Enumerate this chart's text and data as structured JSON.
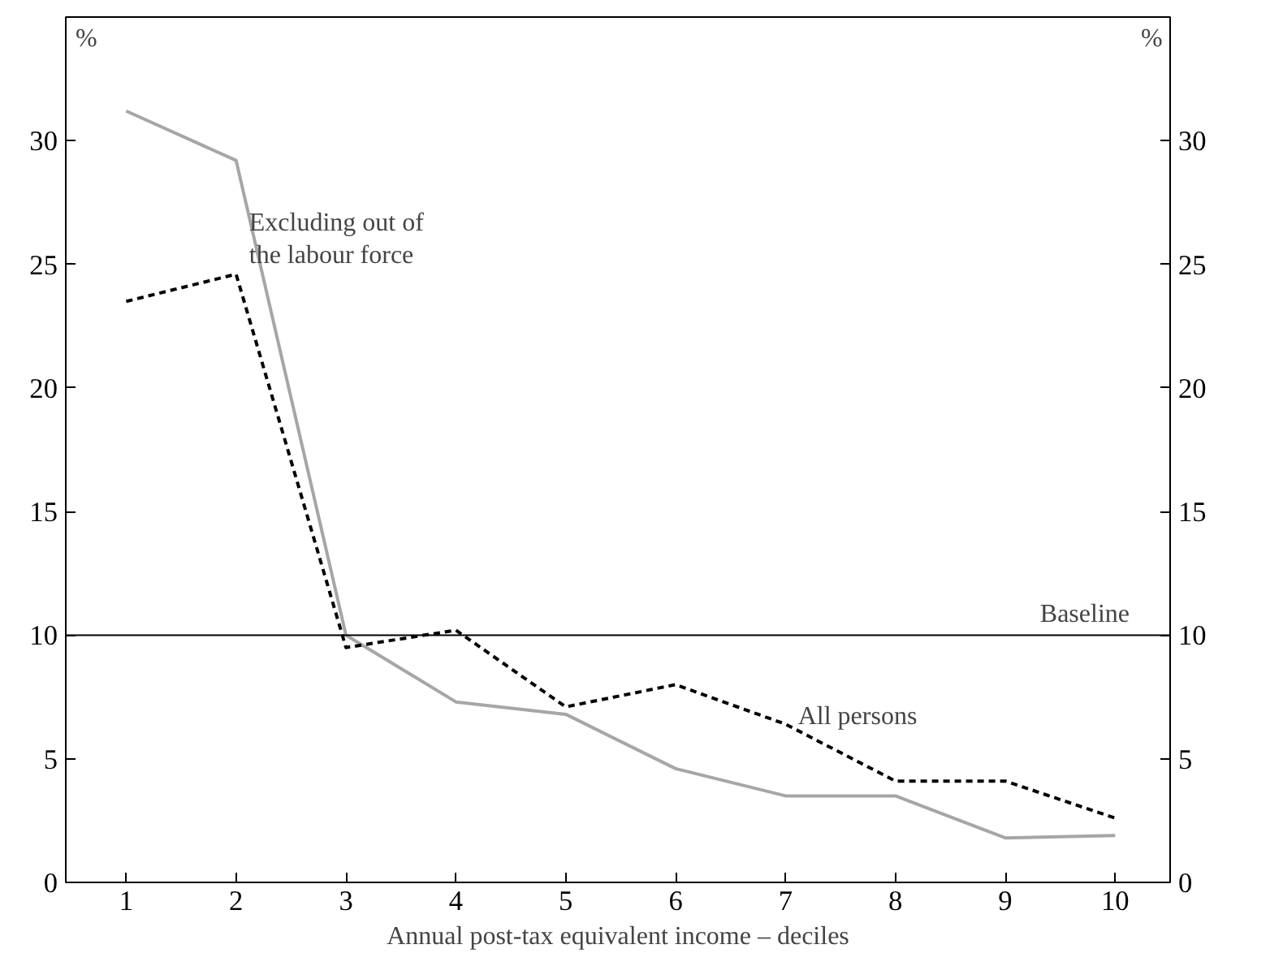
{
  "chart_data": {
    "type": "line",
    "xlabel": "Annual post-tax equivalent income – deciles",
    "ylabel": "%",
    "y2label": "%",
    "x": [
      1,
      2,
      3,
      4,
      5,
      6,
      7,
      8,
      9,
      10
    ],
    "series": [
      {
        "name": "Excluding out of\nthe labour force",
        "color": "#a6a6a6",
        "line_style": "solid",
        "values": [
          31.2,
          29.2,
          10.0,
          7.3,
          6.8,
          4.6,
          3.5,
          3.5,
          1.8,
          1.9
        ]
      },
      {
        "name": "All persons",
        "color": "#000000",
        "line_style": "dashed",
        "values": [
          23.5,
          24.6,
          9.5,
          10.2,
          7.1,
          8.0,
          6.4,
          4.1,
          4.1,
          2.6
        ]
      }
    ],
    "xlim": [
      0.45,
      10.5
    ],
    "xticks": [
      1,
      2,
      3,
      4,
      5,
      6,
      7,
      8,
      9,
      10
    ],
    "ylim": [
      0,
      35
    ],
    "yticks": [
      0,
      5,
      10,
      15,
      20,
      25,
      30
    ],
    "y2lim": [
      0,
      35
    ],
    "y2ticks": [
      0,
      5,
      10,
      15,
      20,
      25,
      30
    ],
    "ref_lines": [
      {
        "axis": "y",
        "value": 10,
        "label": "Baseline",
        "color": "#000000"
      }
    ],
    "grid": false,
    "marker": "none"
  }
}
